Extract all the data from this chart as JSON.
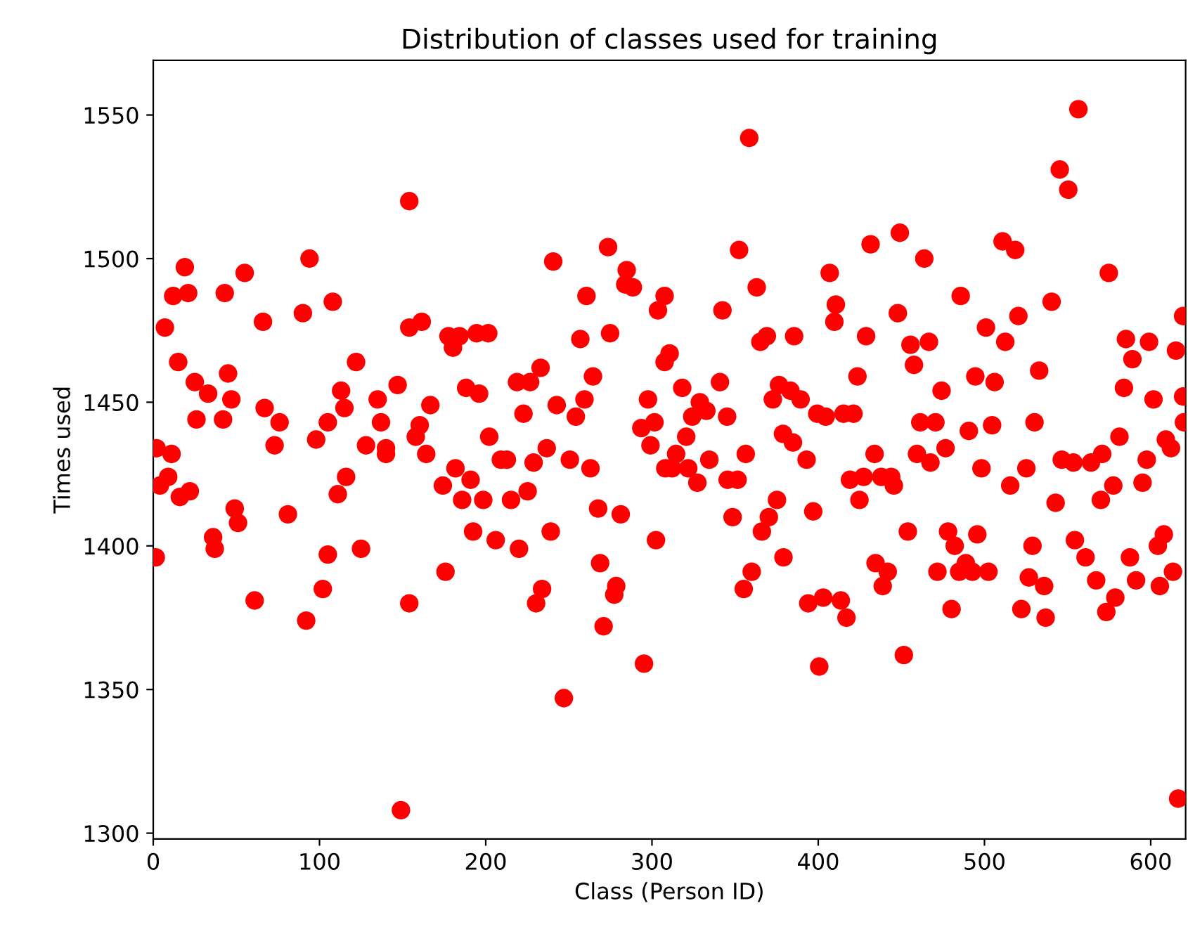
{
  "chart_data": {
    "type": "scatter",
    "title": "Distribution of classes used for training",
    "xlabel": "Class (Person ID)",
    "ylabel": "Times used",
    "xlim": [
      0,
      621
    ],
    "ylim": [
      1298,
      1569
    ],
    "xticks": [
      0,
      100,
      200,
      300,
      400,
      500,
      600
    ],
    "yticks": [
      1300,
      1350,
      1400,
      1450,
      1500,
      1550
    ],
    "grid": false,
    "marker": "circle",
    "series": [
      {
        "color": "#ff0000",
        "x": [
          2,
          1.5,
          7,
          9,
          4,
          11,
          12,
          19,
          21,
          15,
          16,
          22,
          25,
          33,
          26,
          36,
          37,
          43,
          42,
          45,
          47,
          49,
          51,
          55,
          61,
          66,
          67,
          76,
          73,
          81,
          90,
          94,
          92,
          98,
          102,
          105,
          105,
          108,
          111,
          113,
          115,
          116,
          122,
          125,
          128,
          135,
          137,
          140,
          140,
          147,
          149,
          154,
          154,
          154,
          161.5,
          166.7,
          160.3,
          157.9,
          164.2,
          175.8,
          177.6,
          184.2,
          180.3,
          181.8,
          174.2,
          190.9,
          185.8,
          198.5,
          188.2,
          196,
          194.5,
          201.5,
          192.4,
          206,
          202.1,
          209.1,
          212.7,
          215.2,
          220,
          218.8,
          226.7,
          222.7,
          233,
          228.8,
          225.2,
          236.7,
          239.1,
          233.9,
          230.3,
          240.6,
          242.7,
          250.6,
          247,
          254.2,
          259.4,
          264.5,
          263,
          256.9,
          260.6,
          267.6,
          268.8,
          273.6,
          274.8,
          281.2,
          278.5,
          277.3,
          270.9,
          284.8,
          283.9,
          288.5,
          295.2,
          297.6,
          293.6,
          301.5,
          299.1,
          302.4,
          307.6,
          303.6,
          307.6,
          308,
          310.6,
          318.2,
          328.8,
          332.7,
          324.2,
          340.9,
          345.2,
          320.6,
          314.5,
          312.1,
          321.8,
          327.3,
          334.5,
          342.4,
          352.4,
          358.5,
          363,
          356.4,
          345.5,
          351.5,
          348.5,
          355.2,
          360,
          365.2,
          369.1,
          375.2,
          370.3,
          366.1,
          376.4,
          372.7,
          383.3,
          389.4,
          378.8,
          384.8,
          393,
          385.5,
          379.1,
          397,
          399.4,
          404.5,
          406.9,
          410.6,
          409.7,
          415.2,
          421.2,
          394,
          403,
          413.6,
          417,
          400.6,
          423.6,
          428.8,
          431.5,
          419.1,
          427.3,
          424.8,
          433.9,
          437.9,
          443.9,
          445.5,
          434.5,
          441.8,
          438.8,
          451.5,
          449.1,
          447.9,
          455.5,
          457.6,
          453.9,
          459.4,
          463.8,
          466.6,
          474.2,
          461.4,
          470.5,
          467.5,
          476.6,
          485.7,
          500.9,
          512.5,
          520.4,
          510.9,
          518.5,
          494.5,
          506.1,
          490.6,
          504.6,
          498.2,
          515.5,
          525.2,
          532.9,
          530.1,
          540.4,
          545.3,
          550.4,
          556.5,
          574.8,
          546.5,
          553.5,
          564.1,
          570.8,
          581.2,
          577.5,
          570,
          542.8,
          478.1,
          482.1,
          495.7,
          471.7,
          484.8,
          488.8,
          492.7,
          502.4,
          480.2,
          528.9,
          526.7,
          535.9,
          522.2,
          536.8,
          554.4,
          560.8,
          567.2,
          578.7,
          573.3,
          587.5,
          591.2,
          604.3,
          607.9,
          605.5,
          613.4,
          585.1,
          589,
          599,
          583.9,
          601.7,
          597.6,
          595.1,
          609.1,
          612.2,
          615.2,
          619.5,
          619.5,
          620,
          616.5
        ],
        "values": [
          1434,
          1396,
          1476,
          1424,
          1421,
          1432,
          1487,
          1497,
          1488,
          1464,
          1417,
          1419,
          1457,
          1453,
          1444,
          1403,
          1399,
          1488,
          1444,
          1460,
          1451,
          1413,
          1408,
          1495,
          1381,
          1478,
          1448,
          1443,
          1435,
          1411,
          1481,
          1500,
          1374,
          1437,
          1385,
          1397,
          1443,
          1485,
          1418,
          1454,
          1448,
          1424,
          1464,
          1399,
          1435,
          1451,
          1443,
          1434,
          1432,
          1456,
          1308,
          1520,
          1476,
          1380,
          1478,
          1449,
          1442,
          1438,
          1432,
          1391,
          1473,
          1473,
          1469,
          1427,
          1421,
          1423,
          1416,
          1416,
          1455,
          1453,
          1474,
          1474,
          1405,
          1402,
          1438,
          1430,
          1430,
          1416,
          1399,
          1457,
          1457,
          1446,
          1462,
          1429,
          1419,
          1434,
          1405,
          1385,
          1380,
          1499,
          1449,
          1430,
          1347,
          1445,
          1451,
          1459,
          1427,
          1472,
          1487,
          1413,
          1394,
          1504,
          1474,
          1411,
          1386,
          1383,
          1372,
          1496,
          1491,
          1490,
          1359,
          1451,
          1441,
          1443,
          1435,
          1402,
          1487,
          1482,
          1464,
          1427,
          1467,
          1455,
          1450,
          1447,
          1445,
          1457,
          1445,
          1438,
          1432,
          1427,
          1427,
          1422,
          1430,
          1482,
          1503,
          1542,
          1490,
          1432,
          1423,
          1423,
          1410,
          1385,
          1391,
          1471,
          1473,
          1416,
          1410,
          1405,
          1456,
          1451,
          1454,
          1451,
          1439,
          1436,
          1430,
          1473,
          1396,
          1412,
          1446,
          1445,
          1495,
          1484,
          1478,
          1446,
          1446,
          1380,
          1382,
          1381,
          1375,
          1358,
          1459,
          1473,
          1505,
          1423,
          1424,
          1416,
          1432,
          1424,
          1424,
          1421,
          1394,
          1391,
          1386,
          1362,
          1509,
          1481,
          1470,
          1463,
          1405,
          1432,
          1500,
          1471,
          1454,
          1443,
          1443,
          1429,
          1434,
          1487,
          1476,
          1471,
          1480,
          1506,
          1503,
          1459,
          1457,
          1440,
          1442,
          1427,
          1421,
          1427,
          1461,
          1443,
          1485,
          1531,
          1524,
          1552,
          1495,
          1430,
          1429,
          1429,
          1432,
          1438,
          1421,
          1416,
          1415,
          1405,
          1400,
          1404,
          1391,
          1391,
          1394,
          1391,
          1391,
          1378,
          1400,
          1389,
          1386,
          1378,
          1375,
          1402,
          1396,
          1388,
          1382,
          1377,
          1396,
          1388,
          1400,
          1404,
          1386,
          1391,
          1472,
          1465,
          1471,
          1455,
          1451,
          1430,
          1422,
          1437,
          1434,
          1468,
          1480,
          1452,
          1443,
          1312
        ]
      }
    ]
  }
}
